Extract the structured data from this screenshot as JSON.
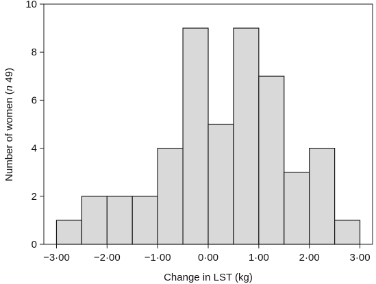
{
  "chart_data": {
    "type": "bar",
    "subtype": "histogram",
    "title": "",
    "xlabel": "Change in LST (kg)",
    "ylabel_prefix": "Number of women (",
    "ylabel_italic": "n",
    "ylabel_suffix": " 49)",
    "xlim": [
      -3.25,
      3.25
    ],
    "ylim": [
      0,
      10
    ],
    "bin_width": 0.5,
    "bins": [
      {
        "start": -3.0,
        "end": -2.5,
        "count": 1
      },
      {
        "start": -2.5,
        "end": -2.0,
        "count": 2
      },
      {
        "start": -2.0,
        "end": -1.5,
        "count": 2
      },
      {
        "start": -1.5,
        "end": -1.0,
        "count": 2
      },
      {
        "start": -1.0,
        "end": -0.5,
        "count": 4
      },
      {
        "start": -0.5,
        "end": 0.0,
        "count": 9
      },
      {
        "start": 0.0,
        "end": 0.5,
        "count": 5
      },
      {
        "start": 0.5,
        "end": 1.0,
        "count": 9
      },
      {
        "start": 1.0,
        "end": 1.5,
        "count": 7
      },
      {
        "start": 1.5,
        "end": 2.0,
        "count": 3
      },
      {
        "start": 2.0,
        "end": 2.5,
        "count": 4
      },
      {
        "start": 2.5,
        "end": 3.0,
        "count": 1
      }
    ],
    "x_ticks": [
      {
        "value": -3.0,
        "label": "−3·00"
      },
      {
        "value": -2.0,
        "label": "−2·00"
      },
      {
        "value": -1.0,
        "label": "−1·00"
      },
      {
        "value": 0.0,
        "label": "0·00"
      },
      {
        "value": 1.0,
        "label": "1·00"
      },
      {
        "value": 2.0,
        "label": "2·00"
      },
      {
        "value": 3.0,
        "label": "3·00"
      }
    ],
    "y_ticks": [
      {
        "value": 0,
        "label": "0"
      },
      {
        "value": 2,
        "label": "2"
      },
      {
        "value": 4,
        "label": "4"
      },
      {
        "value": 6,
        "label": "6"
      },
      {
        "value": 8,
        "label": "8"
      },
      {
        "value": 10,
        "label": "10"
      }
    ],
    "grid": false,
    "legend": "none",
    "colors": {
      "bar_fill": "#d9d9d9",
      "bar_stroke": "#1a1a1a",
      "axis": "#1a1a1a"
    }
  }
}
